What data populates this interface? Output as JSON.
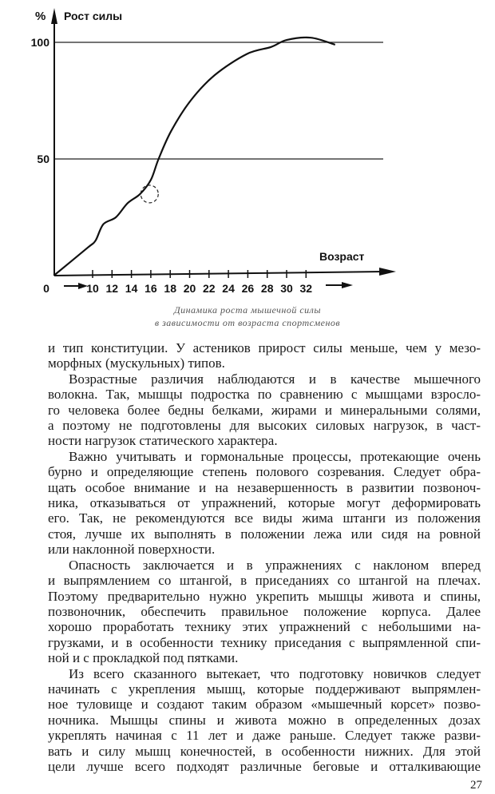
{
  "chart_data": {
    "type": "line",
    "ylabel": "Рост силы",
    "yunit": "%",
    "xlabel": "Возраст",
    "x_ticks": [
      "0",
      "10",
      "12",
      "14",
      "16",
      "18",
      "20",
      "22",
      "24",
      "26",
      "28",
      "30",
      "32"
    ],
    "y_ticks": [
      "50",
      "100"
    ],
    "gridlines_y": [
      50,
      100
    ],
    "ylim": [
      0,
      105
    ],
    "series": [
      {
        "x": [
          6,
          9.5,
          10.3,
          11.1,
          12.4,
          13.6,
          14.9,
          16,
          16.8,
          18.1,
          20.1,
          22.6,
          25.9,
          28.4,
          30,
          32.5,
          35
        ],
        "y": [
          0,
          12,
          15,
          22,
          25,
          31,
          35,
          41,
          50,
          62,
          75,
          86,
          95,
          98,
          101,
          102,
          99
        ]
      }
    ],
    "highlight": {
      "x": 15.7,
      "y": 36,
      "style": "dashed-circle"
    },
    "caption": [
      "Динамика роста мышечной силы",
      "в зависимости от возраста спортсменов"
    ]
  },
  "text": {
    "lines": [
      "и тип конституции. У астеников прирост силы меньше, чем у мезо-",
      "морфных (мускульных) типов.",
      "Возрастные различия наблюдаются и в качестве мышечного",
      "волокна. Так, мышцы подростка по сравнению с мышцами взросло-",
      "го человека более бедны белками, жирами и минеральными солями,",
      "а поэтому не подготовлены для высоких силовых нагрузок, в част-",
      "ности нагрузок статического характера.",
      "Важно учитывать и гормональные процессы, протекающие очень",
      "бурно и определяющие степень полового созревания. Следует обра-",
      "щать особое внимание и на незавершенность в развитии позвоноч-",
      "ника, отказываться от упражнений, которые могут деформировать",
      "его. Так, не рекомендуются все виды жима штанги из положения",
      "стоя, лучше их выполнять в положении лежа или сидя на ровной",
      "или наклонной поверхности.",
      "Опасность заключается и в упражнениях с наклоном вперед",
      "и выпрямлением со штангой, в приседаниях со штангой на плечах.",
      "Поэтому предварительно нужно укрепить мышцы живота и спины,",
      "позвоночник, обеспечить правильное положение корпуса. Далее",
      "хорошо проработать технику этих упражнений с небольшими на-",
      "грузками, и в особенности технику приседания с выпрямленной спи-",
      "ной и с прокладкой под пятками.",
      "Из всего сказанного вытекает, что подготовку новичков следует",
      "начинать с укрепления мышц, которые поддерживают выпрямлен-",
      "ное туловище и создают таким образом «мышечный корсет» позво-",
      "ночника. Мышцы спины и живота можно в определенных дозах",
      "укреплять начиная с 11 лет и даже раньше. Следует также разви-",
      "вать и силу мышц конечностей, в особенности нижних. Для этой",
      "цели лучше всего подходят различные беговые и отталкивающие"
    ],
    "indent_lines": [
      2,
      7,
      14,
      21
    ],
    "last_lines": [
      1,
      6,
      13,
      20
    ]
  },
  "page_number": "27"
}
